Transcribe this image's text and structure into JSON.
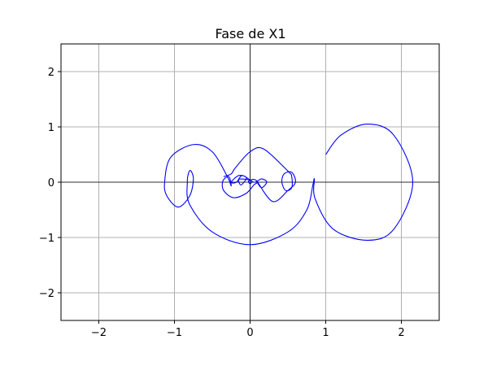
{
  "chart_data": {
    "type": "line",
    "title": "Fase de X1",
    "xlabel": "",
    "ylabel": "",
    "xlim": [
      -2.5,
      2.5
    ],
    "ylim": [
      -2.5,
      2.5
    ],
    "grid": true,
    "legend": "none",
    "x_ticks": [
      -2,
      -1,
      0,
      1,
      2
    ],
    "y_ticks": [
      -2,
      -1,
      0,
      1,
      2
    ],
    "x_tick_labels": [
      "−2",
      "−1",
      "0",
      "1",
      "2"
    ],
    "y_tick_labels": [
      "−2",
      "−1",
      "0",
      "1",
      "2"
    ],
    "zero_lines": true,
    "colors": {
      "line": "#0000ff",
      "grid": "#b0b0b0",
      "axes": "#000000",
      "zero": "#000000"
    },
    "series": [
      {
        "points": [
          [
            1.0,
            0.5
          ],
          [
            1.2,
            0.85
          ],
          [
            1.55,
            1.05
          ],
          [
            1.9,
            0.85
          ],
          [
            2.15,
            0.0
          ],
          [
            1.9,
            -0.85
          ],
          [
            1.55,
            -1.05
          ],
          [
            1.1,
            -0.85
          ],
          [
            0.86,
            -0.3
          ],
          [
            0.85,
            0.05
          ],
          [
            0.83,
            -0.05
          ],
          [
            0.75,
            -0.5
          ],
          [
            0.5,
            -0.9
          ],
          [
            0.0,
            -1.13
          ],
          [
            -0.5,
            -0.9
          ],
          [
            -0.8,
            -0.4
          ],
          [
            -0.83,
            0.0
          ],
          [
            -0.81,
            0.18
          ],
          [
            -0.78,
            0.2
          ],
          [
            -0.75,
            0.05
          ],
          [
            -0.8,
            -0.25
          ],
          [
            -0.95,
            -0.45
          ],
          [
            -1.1,
            -0.25
          ],
          [
            -1.13,
            0.0
          ],
          [
            -1.05,
            0.45
          ],
          [
            -0.75,
            0.68
          ],
          [
            -0.5,
            0.55
          ],
          [
            -0.3,
            0.1
          ],
          [
            -0.25,
            -0.07
          ],
          [
            -0.28,
            0.1
          ],
          [
            -0.36,
            0.02
          ],
          [
            -0.35,
            -0.15
          ],
          [
            -0.22,
            -0.28
          ],
          [
            -0.05,
            -0.2
          ],
          [
            0.05,
            -0.05
          ],
          [
            0.1,
            0.0
          ],
          [
            0.05,
            0.05
          ],
          [
            -0.02,
            0.02
          ],
          [
            0.0,
            -0.03
          ],
          [
            0.02,
            0.02
          ],
          [
            -0.05,
            0.05
          ],
          [
            -0.15,
            0.05
          ],
          [
            -0.12,
            -0.05
          ],
          [
            -0.05,
            0.08
          ],
          [
            -0.15,
            0.12
          ],
          [
            -0.25,
            0.0
          ],
          [
            -0.18,
            0.0
          ],
          [
            -0.1,
            0.12
          ],
          [
            0.05,
            0.0
          ],
          [
            0.15,
            0.06
          ],
          [
            0.22,
            0.0
          ],
          [
            0.15,
            -0.1
          ],
          [
            0.1,
            0.0
          ],
          [
            0.3,
            -0.35
          ],
          [
            0.5,
            -0.15
          ],
          [
            0.6,
            0.0
          ],
          [
            0.55,
            0.18
          ],
          [
            0.45,
            0.15
          ],
          [
            0.42,
            0.0
          ],
          [
            0.47,
            -0.15
          ],
          [
            0.55,
            -0.1
          ],
          [
            0.55,
            0.1
          ],
          [
            0.5,
            0.2
          ],
          [
            0.18,
            0.6
          ],
          [
            0.0,
            0.55
          ],
          [
            -0.2,
            0.25
          ],
          [
            -0.25,
            0.15
          ],
          [
            -0.35,
            0.1
          ]
        ]
      }
    ]
  }
}
